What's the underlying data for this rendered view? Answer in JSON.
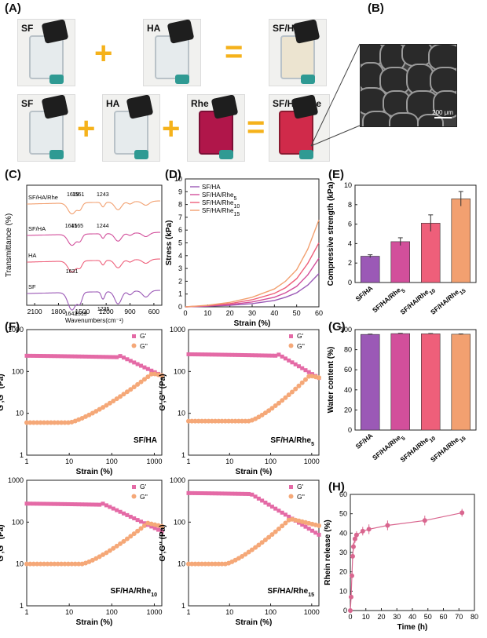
{
  "panel_letters": [
    "(A)",
    "(B)",
    "(C)",
    "(D)",
    "(E)",
    "(F)",
    "(G)",
    "(H)"
  ],
  "photos": {
    "row1": [
      "SF",
      "HA",
      "SF/HA"
    ],
    "row2": [
      "SF",
      "HA",
      "Rhe",
      "SF/HA/Rhe"
    ],
    "operators": {
      "plus": "+",
      "equals": "="
    }
  },
  "sem": {
    "scale_bar": "200 μm"
  },
  "colors": {
    "sf_ha": "#9b59b6",
    "rhe5": "#d24f9b",
    "rhe10": "#ee5f7a",
    "rhe15": "#f2a070",
    "g_prime": "#e46aa6",
    "g_double": "#f5a878",
    "release": "#d9668f"
  },
  "chart_data": [
    {
      "id": "C",
      "type": "line",
      "xlabel": "Wavenumbers(cm⁻¹)",
      "ylabel": "Transmittance (%)",
      "xticks": [
        2100,
        1800,
        1500,
        1200,
        900,
        600
      ],
      "x_reversed": true,
      "series": [
        {
          "name": "SF/HA/Rhe",
          "color": "#f2a070",
          "peaks": [
            "1619",
            "1551",
            "1243"
          ]
        },
        {
          "name": "SF/HA",
          "color": "#d24f9b",
          "peaks": [
            "1641",
            "1565",
            "1244"
          ]
        },
        {
          "name": "HA",
          "color": "#ee5f7a",
          "peaks": [
            "1631"
          ]
        },
        {
          "name": "SF",
          "color": "#9b59b6",
          "peaks": [
            "1642",
            "1519",
            "1235"
          ]
        }
      ]
    },
    {
      "id": "D",
      "type": "line",
      "xlabel": "Strain (%)",
      "ylabel": "Stress (kPa)",
      "xlim": [
        0,
        60
      ],
      "ylim": [
        0,
        10
      ],
      "xticks": [
        0,
        10,
        20,
        30,
        40,
        50,
        60
      ],
      "yticks": [
        0,
        1,
        2,
        3,
        4,
        5,
        6,
        7,
        8,
        9,
        10
      ],
      "x": [
        0,
        10,
        20,
        30,
        40,
        45,
        50,
        55,
        60
      ],
      "series": [
        {
          "name": "SF/HA",
          "color": "#9b59b6",
          "values": [
            0,
            0.05,
            0.12,
            0.25,
            0.5,
            0.75,
            1.1,
            1.7,
            2.6
          ]
        },
        {
          "name": "SF/HA/Rhe5",
          "color": "#d24f9b",
          "values": [
            0,
            0.07,
            0.18,
            0.38,
            0.75,
            1.1,
            1.6,
            2.5,
            3.8
          ]
        },
        {
          "name": "SF/HA/Rhe10",
          "color": "#ee5f7a",
          "values": [
            0,
            0.1,
            0.25,
            0.55,
            1.05,
            1.5,
            2.2,
            3.4,
            5.0
          ]
        },
        {
          "name": "SF/HA/Rhe15",
          "color": "#f2a070",
          "values": [
            0,
            0.12,
            0.35,
            0.75,
            1.4,
            2.0,
            2.9,
            4.5,
            6.8
          ]
        }
      ]
    },
    {
      "id": "E",
      "type": "bar",
      "ylabel": "Compressive strength (kPa)",
      "ylim": [
        0,
        10
      ],
      "yticks": [
        0,
        2,
        4,
        6,
        8,
        10
      ],
      "categories": [
        "SF/HA",
        "SF/HA/Rhe5",
        "SF/HA/Rhe10",
        "SF/HA/Rhe15"
      ],
      "values": [
        2.7,
        4.2,
        6.1,
        8.6
      ],
      "errors": [
        0.15,
        0.4,
        0.85,
        0.75
      ]
    },
    {
      "id": "F1",
      "type": "scatter",
      "label": "SF/HA",
      "xlabel": "Strain (%)",
      "ylabel": "G',G'' (Pa)",
      "xscale": "log",
      "yscale": "log",
      "xlim": [
        1,
        1500
      ],
      "ylim": [
        1,
        1000
      ],
      "legend": [
        "G'",
        "G''"
      ],
      "gp": {
        "plateau": 240,
        "onset": 150,
        "end": 80
      },
      "gpp": {
        "base": 6,
        "rise_start": 10,
        "peak": 90,
        "peak_at": 900
      }
    },
    {
      "id": "F2",
      "type": "scatter",
      "label": "SF/HA/Rhe5",
      "xlabel": "Strain (%)",
      "ylabel": "G',G'' (Pa)",
      "xscale": "log",
      "yscale": "log",
      "xlim": [
        1,
        1500
      ],
      "ylim": [
        1,
        1000
      ],
      "legend": [
        "G'",
        "G''"
      ],
      "gp": {
        "plateau": 260,
        "onset": 150,
        "end": 70
      },
      "gpp": {
        "base": 6.5,
        "rise_start": 30,
        "peak": 80,
        "peak_at": 900
      }
    },
    {
      "id": "F3",
      "type": "scatter",
      "label": "SF/HA/Rhe10",
      "xlabel": "Strain (%)",
      "ylabel": "G',G'' (Pa)",
      "xscale": "log",
      "yscale": "log",
      "xlim": [
        1,
        1500
      ],
      "ylim": [
        1,
        1000
      ],
      "legend": [
        "G'",
        "G''"
      ],
      "gp": {
        "plateau": 280,
        "onset": 60,
        "end": 60
      },
      "gpp": {
        "base": 10,
        "rise_start": 20,
        "peak": 95,
        "peak_at": 700
      }
    },
    {
      "id": "F4",
      "type": "scatter",
      "label": "SF/HA/Rhe15",
      "xlabel": "Strain (%)",
      "ylabel": "G',G'' (Pa)",
      "xscale": "log",
      "yscale": "log",
      "xlim": [
        1,
        1500
      ],
      "ylim": [
        1,
        1000
      ],
      "legend": [
        "G'",
        "G''"
      ],
      "gp": {
        "plateau": 500,
        "onset": 30,
        "end": 50
      },
      "gpp": {
        "base": 10,
        "rise_start": 8,
        "peak": 120,
        "peak_at": 300
      }
    },
    {
      "id": "G",
      "type": "bar",
      "ylabel": "Water content (%)",
      "ylim": [
        0,
        100
      ],
      "yticks": [
        0,
        20,
        40,
        60,
        80,
        100
      ],
      "categories": [
        "SF/HA",
        "SF/HA/Rhe5",
        "SF/HA/Rhe10",
        "SF/HA/Rhe15"
      ],
      "values": [
        95.2,
        96.0,
        95.8,
        95.4
      ],
      "errors": [
        0.3,
        0.3,
        0.3,
        0.3
      ]
    },
    {
      "id": "H",
      "type": "line",
      "xlabel": "Time (h)",
      "ylabel": "Rhein release (%)",
      "xlim": [
        0,
        80
      ],
      "ylim": [
        0,
        60
      ],
      "xticks": [
        0,
        10,
        20,
        30,
        40,
        50,
        60,
        70,
        80
      ],
      "yticks": [
        0,
        10,
        20,
        30,
        40,
        50,
        60
      ],
      "x": [
        0,
        0.5,
        1,
        1.5,
        2,
        3,
        4,
        8,
        12,
        24,
        48,
        72
      ],
      "values": [
        0,
        7,
        18,
        28,
        33,
        37,
        39,
        41,
        42,
        44,
        46.5,
        50.5
      ],
      "errors": [
        0,
        0.5,
        1,
        1.5,
        2,
        2,
        2,
        2.2,
        2.5,
        2.5,
        2.5,
        2
      ]
    }
  ]
}
